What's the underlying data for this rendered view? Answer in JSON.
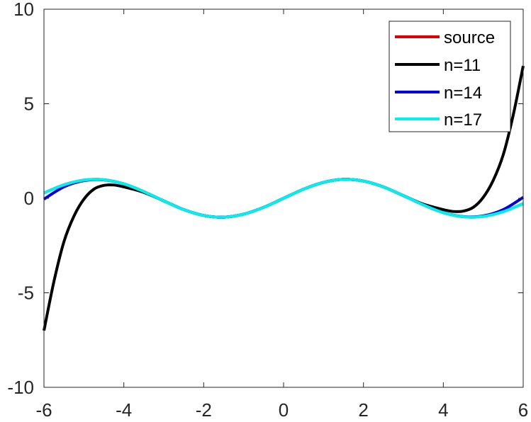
{
  "chart_data": {
    "type": "line",
    "title": "",
    "xlabel": "",
    "ylabel": "",
    "xlim": [
      -6,
      6
    ],
    "ylim": [
      -10,
      10
    ],
    "xticks": [
      -6,
      -4,
      -2,
      0,
      2,
      4,
      6
    ],
    "yticks": [
      -10,
      -5,
      0,
      5,
      10
    ],
    "xtick_labels": [
      "-6",
      "-4",
      "-2",
      "0",
      "2",
      "4",
      "6"
    ],
    "ytick_labels": [
      "-10",
      "-5",
      "0",
      "5",
      "10"
    ],
    "grid": false,
    "legend_position": "top-right",
    "series": [
      {
        "name": "source",
        "color": "#e00000",
        "x": [
          -6,
          -5.5,
          -5,
          -4.5,
          -4,
          -3.5,
          -3,
          -2.5,
          -2,
          -1.5,
          -1,
          -0.5,
          0,
          0.5,
          1,
          1.5,
          2,
          2.5,
          3,
          3.5,
          4,
          4.5,
          5,
          5.5,
          6
        ],
        "y": [
          0.28,
          0.71,
          0.96,
          0.98,
          0.76,
          0.35,
          -0.14,
          -0.6,
          -0.91,
          -1.0,
          -0.84,
          -0.48,
          0,
          0.48,
          0.84,
          1.0,
          0.91,
          0.6,
          0.14,
          -0.35,
          -0.76,
          -0.98,
          -0.96,
          -0.71,
          -0.28
        ]
      },
      {
        "name": "n=11",
        "color": "#000000",
        "x": [
          -6,
          -5.75,
          -5.5,
          -5.25,
          -5,
          -4.75,
          -4.5,
          -4.25,
          -4,
          -3.5,
          -3,
          -2.5,
          -2,
          -1.5,
          -1,
          -0.5,
          0,
          0.5,
          1,
          1.5,
          2,
          2.5,
          3,
          3.5,
          4,
          4.25,
          4.5,
          4.75,
          5,
          5.25,
          5.5,
          5.75,
          6
        ],
        "y": [
          -7.0,
          -4.4,
          -2.3,
          -0.95,
          -0.05,
          0.48,
          0.68,
          0.7,
          0.6,
          0.31,
          -0.14,
          -0.6,
          -0.91,
          -1.0,
          -0.84,
          -0.48,
          0,
          0.48,
          0.84,
          1.0,
          0.91,
          0.6,
          0.14,
          -0.31,
          -0.6,
          -0.7,
          -0.68,
          -0.48,
          0.05,
          0.95,
          2.3,
          4.4,
          7.0
        ]
      },
      {
        "name": "n=14",
        "color": "#0000e0",
        "x": [
          -6,
          -5.5,
          -5,
          -4.5,
          -4,
          -3.5,
          -3,
          -2.5,
          -2,
          -1.5,
          -1,
          -0.5,
          0,
          0.5,
          1,
          1.5,
          2,
          2.5,
          3,
          3.5,
          4,
          4.5,
          5,
          5.5,
          6
        ],
        "y": [
          -0.05,
          0.6,
          0.93,
          0.97,
          0.76,
          0.35,
          -0.14,
          -0.6,
          -0.91,
          -1.0,
          -0.84,
          -0.48,
          0,
          0.48,
          0.84,
          1.0,
          0.91,
          0.6,
          0.14,
          -0.35,
          -0.76,
          -0.97,
          -0.93,
          -0.6,
          0.05
        ]
      },
      {
        "name": "n=17",
        "color": "#00f0f0",
        "x": [
          -6,
          -5.5,
          -5,
          -4.5,
          -4,
          -3.5,
          -3,
          -2.5,
          -2,
          -1.5,
          -1,
          -0.5,
          0,
          0.5,
          1,
          1.5,
          2,
          2.5,
          3,
          3.5,
          4,
          4.5,
          5,
          5.5,
          6
        ],
        "y": [
          0.28,
          0.71,
          0.96,
          0.98,
          0.76,
          0.35,
          -0.14,
          -0.6,
          -0.91,
          -1.0,
          -0.84,
          -0.48,
          0,
          0.48,
          0.84,
          1.0,
          0.91,
          0.6,
          0.14,
          -0.35,
          -0.76,
          -0.98,
          -0.96,
          -0.71,
          -0.28
        ]
      }
    ]
  }
}
